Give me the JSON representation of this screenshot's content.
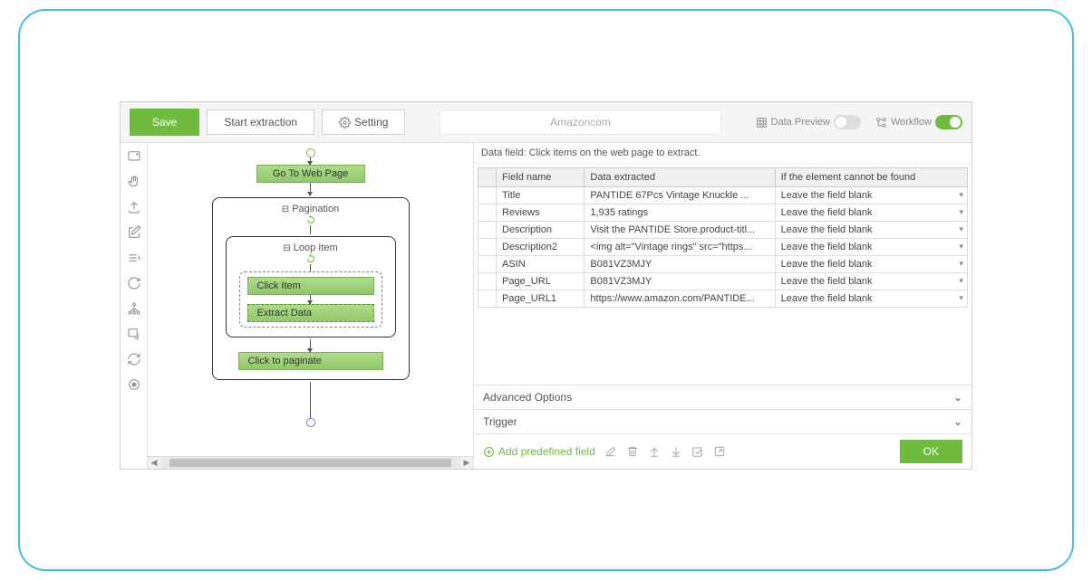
{
  "toolbar": {
    "save": "Save",
    "start": "Start extraction",
    "setting": "Setting",
    "url": "Amazoncom",
    "preview_label": "Data Preview",
    "workflow_label": "Workflow"
  },
  "workflow": {
    "go_to": "Go To Web Page",
    "pagination": "Pagination",
    "loop": "Loop Item",
    "click_item": "Click Item",
    "extract": "Extract Data",
    "paginate": "Click to paginate"
  },
  "data_panel": {
    "hint": "Data field: Click items on the web page to extract.",
    "col_name": "Field name",
    "col_extracted": "Data extracted",
    "col_missing": "If the element cannot be found",
    "rows": [
      {
        "name": "Title",
        "extracted": "PANTIDE 67Pcs Vintage Knuckle ...",
        "missing": "Leave the field blank"
      },
      {
        "name": "Reviews",
        "extracted": "1,935 ratings",
        "missing": "Leave the field blank"
      },
      {
        "name": "Description",
        "extracted": "Visit the PANTIDE Store.product-titl...",
        "missing": "Leave the field blank"
      },
      {
        "name": "Description2",
        "extracted": "<img alt=\"Vintage rings\" src=\"https...",
        "missing": "Leave the field blank"
      },
      {
        "name": "ASIN",
        "extracted": "B081VZ3MJY",
        "missing": "Leave the field blank"
      },
      {
        "name": "Page_URL",
        "extracted": "B081VZ3MJY",
        "missing": "Leave the field blank"
      },
      {
        "name": "Page_URL1",
        "extracted": "https://www.amazon.com/PANTIDE...",
        "missing": "Leave the field blank"
      }
    ],
    "advanced": "Advanced Options",
    "trigger": "Trigger",
    "add_predefined": "Add predefined field",
    "ok": "OK"
  },
  "colors": {
    "accent": "#6fbb3e",
    "border": "#d0d0d0"
  }
}
